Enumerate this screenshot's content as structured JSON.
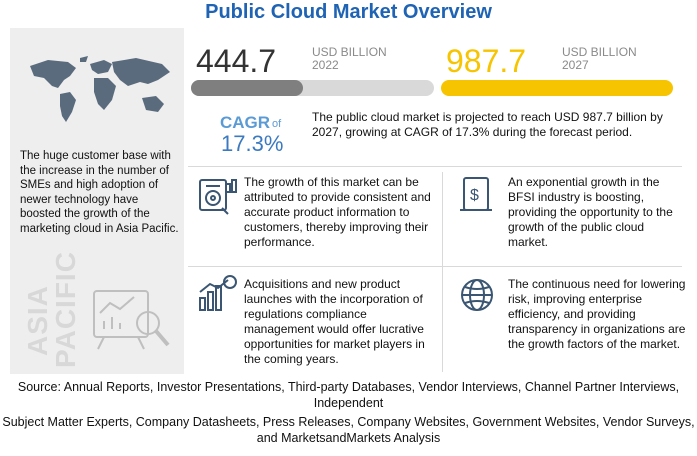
{
  "title": "Public Cloud Market Overview",
  "left_panel": {
    "text": "The huge customer base with the increase in the number of SMEs and high adoption of newer technology have boosted the growth of the marketing cloud in Asia Pacific.",
    "region_word_1": "ASIA",
    "region_word_2": "PACIFIC"
  },
  "market_2022": {
    "value": "444.7",
    "unit": "USD BILLION",
    "year": "2022",
    "bar_fill": 0.46,
    "color": "#7f7f7f"
  },
  "market_2027": {
    "value": "987.7",
    "unit": "USD BILLION",
    "year": "2027",
    "bar_fill": 1.0,
    "color": "#f6c400"
  },
  "cagr": {
    "label": "CAGR",
    "of": "of",
    "value": "17.3%"
  },
  "forecast_text": "The public cloud market is projected to reach USD 987.7 billion by 2027, growing at CAGR of 17.3% during the forecast period.",
  "insights": [
    {
      "icon": "target-analytics-icon",
      "text": "The growth of this market can be attributed to provide consistent and accurate product information to customers, thereby improving their performance."
    },
    {
      "icon": "bank-money-icon",
      "text": "An exponential growth in the BFSI industry is boosting, providing the opportunity to the growth of the public cloud market."
    },
    {
      "icon": "growth-chart-dollar-icon",
      "text": "Acquisitions and new product launches with the incorporation of regulations compliance management would offer lucrative opportunities for market players in the coming years."
    },
    {
      "icon": "globe-icon",
      "text": "The continuous need for lowering risk, improving enterprise efficiency, and providing transparency in organizations are the growth factors of the market."
    }
  ],
  "source": {
    "line1": "Source: Annual Reports, Investor Presentations, Third-party Databases, Vendor Interviews, Channel Partner Interviews, Independent",
    "line2": "Subject Matter Experts, Company Datasheets, Press Releases, Company Websites, Government Websites, Vendor Surveys, and MarketsandMarkets Analysis"
  }
}
